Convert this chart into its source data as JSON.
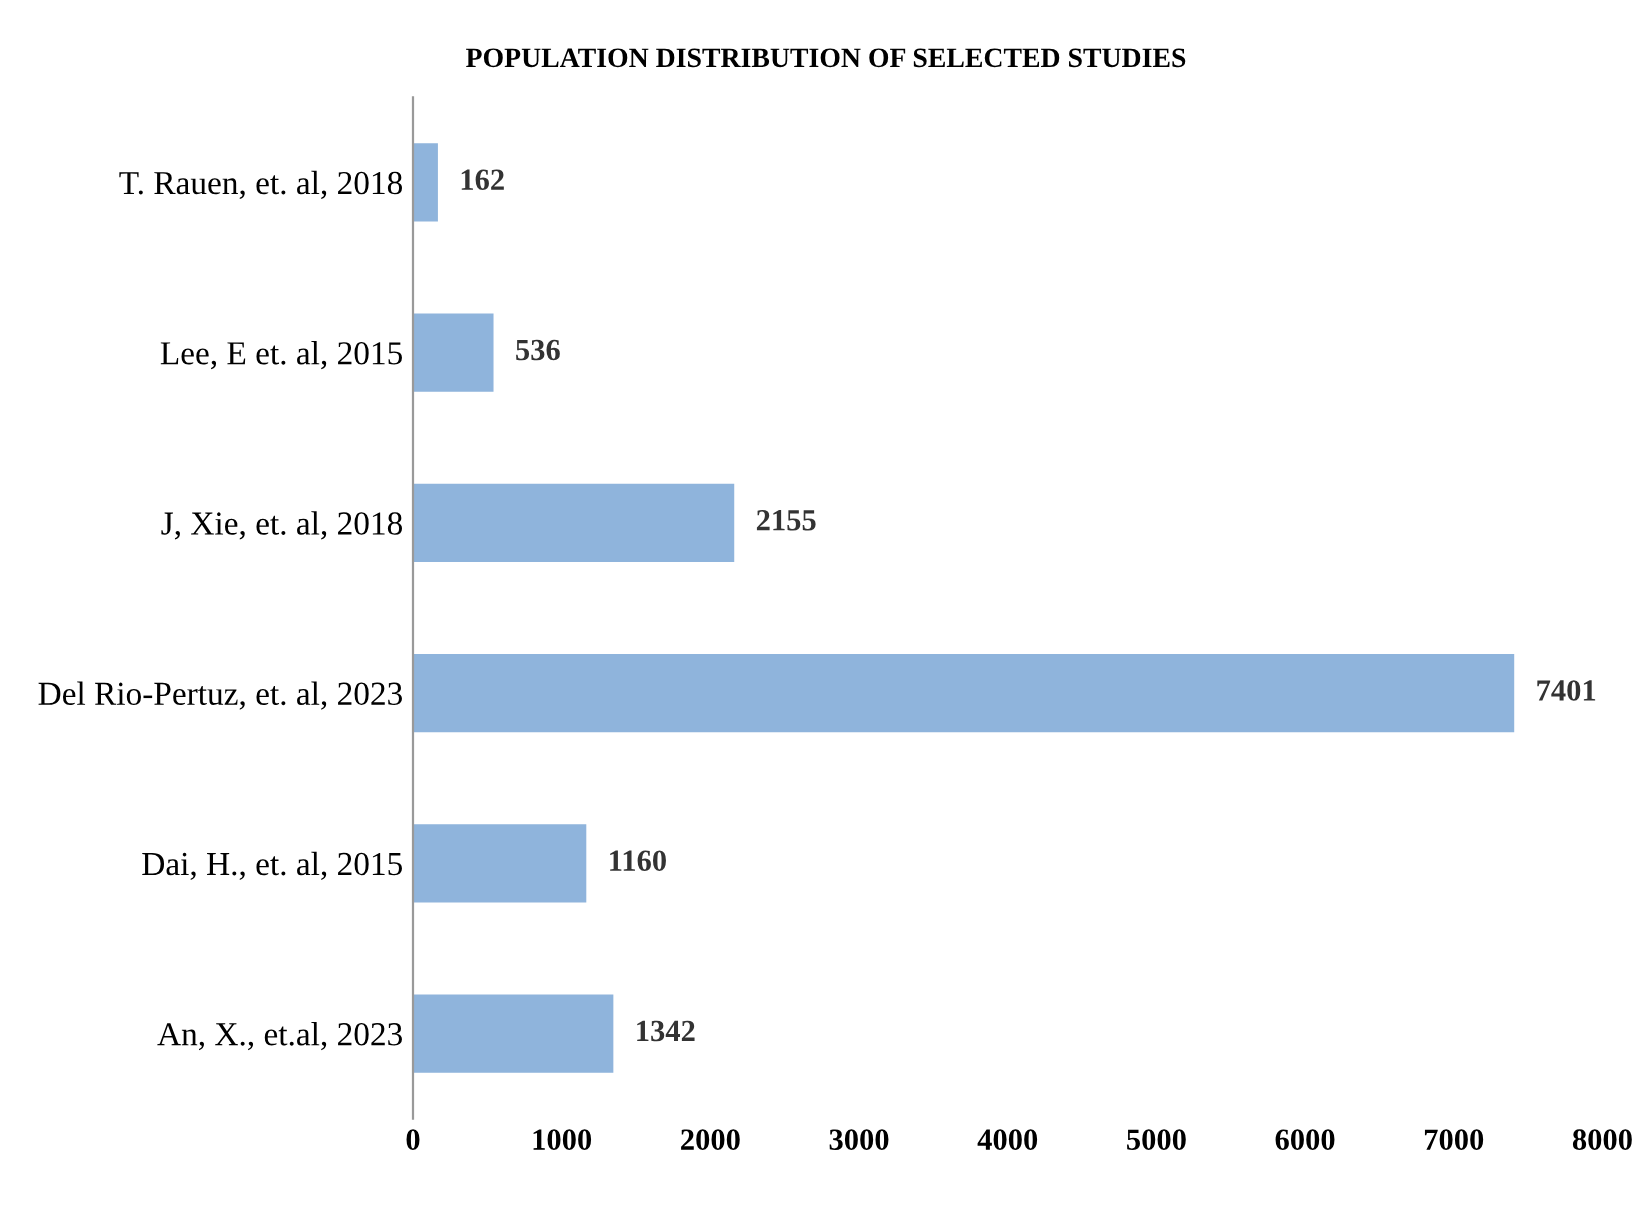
{
  "chart_data": {
    "type": "bar",
    "orientation": "horizontal",
    "title": "POPULATION DISTRIBUTION OF SELECTED STUDIES",
    "categories": [
      "T. Rauen, et. al, 2018",
      "Lee, E et. al, 2015",
      "J, Xie, et. al, 2018",
      "Del Rio-Pertuz, et. al, 2023",
      "Dai, H., et. al, 2015",
      "An, X., et.al, 2023"
    ],
    "values": [
      162,
      536,
      2155,
      7401,
      1160,
      1342
    ],
    "color": "#8fb4dc",
    "xlim": [
      0,
      8000
    ],
    "xticks": [
      0,
      1000,
      2000,
      3000,
      4000,
      5000,
      6000,
      7000,
      8000
    ],
    "data_labels": true,
    "grid": false,
    "legend": false
  }
}
